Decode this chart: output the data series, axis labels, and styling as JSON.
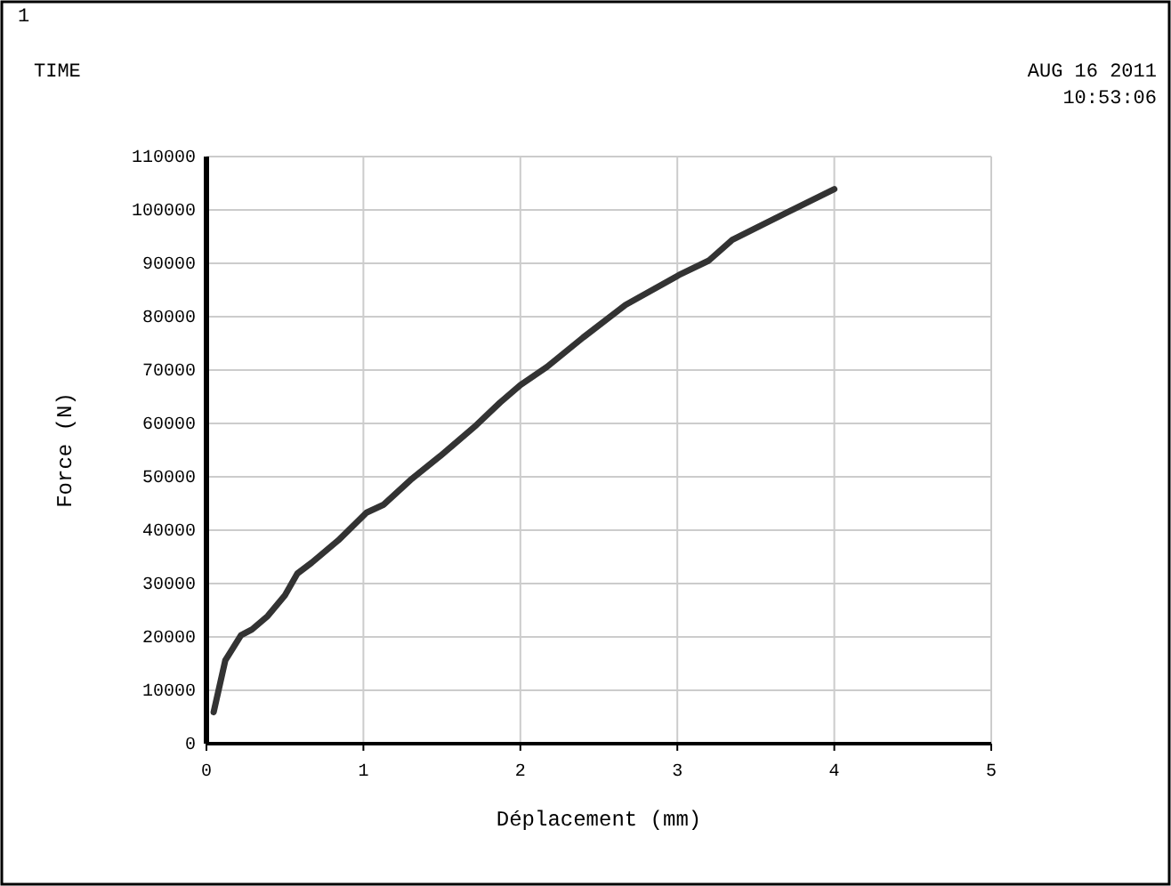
{
  "chart_data": {
    "type": "line",
    "xlabel": "Déplacement (mm)",
    "ylabel": "Force (N)",
    "annotations": [
      "1",
      "TIME",
      "AUG 16 2011",
      "10:53:06"
    ],
    "xlim": [
      0,
      5
    ],
    "xticks": [
      0,
      1,
      2,
      3,
      4,
      5
    ],
    "ylim": [
      0,
      110000
    ],
    "yticks": [
      0,
      10000,
      20000,
      30000,
      40000,
      50000,
      60000,
      70000,
      80000,
      90000,
      100000,
      110000
    ],
    "grid": true,
    "series": [
      {
        "color": "#333333",
        "x": [
          0.046,
          0.12,
          0.22,
          0.29,
          0.39,
          0.5,
          0.58,
          0.67,
          0.84,
          1.02,
          1.13,
          1.3,
          1.49,
          1.72,
          1.87,
          2.0,
          2.17,
          2.4,
          2.67,
          3.01,
          3.2,
          3.35,
          3.69,
          4.0
        ],
        "values": [
          5900,
          15600,
          20300,
          21400,
          23900,
          27800,
          31900,
          33900,
          38100,
          43300,
          44800,
          49400,
          53900,
          59700,
          63900,
          67200,
          70600,
          76100,
          82200,
          87800,
          90500,
          94400,
          99400,
          103900
        ]
      }
    ]
  }
}
